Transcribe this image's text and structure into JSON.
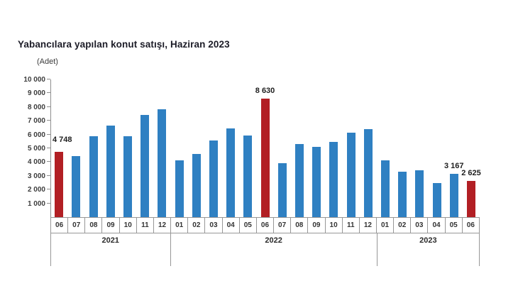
{
  "chart_data": {
    "type": "bar",
    "title": "Yabancılara yapılan konut satışı, Haziran 2023",
    "unit_label": "(Adet)",
    "xlabel": "",
    "ylabel": "",
    "ylim": [
      0,
      10000
    ],
    "grid": false,
    "legend": false,
    "colors": {
      "bar_default": "#2f80c2",
      "bar_highlight": "#b21f24",
      "axis": "#8f8f8f",
      "cell_border": "#979797",
      "title_text": "#1c1c27",
      "label_text": "#1d1d1d"
    },
    "yticks": [
      {
        "value": 10000,
        "label": "10 000"
      },
      {
        "value": 9000,
        "label": "9 000"
      },
      {
        "value": 8000,
        "label": "8 000"
      },
      {
        "value": 7000,
        "label": "7 000"
      },
      {
        "value": 6000,
        "label": "6 000"
      },
      {
        "value": 5000,
        "label": "5 000"
      },
      {
        "value": 4000,
        "label": "4 000"
      },
      {
        "value": 3000,
        "label": "3 000"
      },
      {
        "value": 2000,
        "label": "2 000"
      },
      {
        "value": 1000,
        "label": "1 000"
      }
    ],
    "bars": [
      {
        "year": "2021",
        "month": "06",
        "value": 4748,
        "highlight": true,
        "data_label": "4 748",
        "label_align": "left"
      },
      {
        "year": "2021",
        "month": "07",
        "value": 4450,
        "highlight": false
      },
      {
        "year": "2021",
        "month": "08",
        "value": 5900,
        "highlight": false
      },
      {
        "year": "2021",
        "month": "09",
        "value": 6650,
        "highlight": false
      },
      {
        "year": "2021",
        "month": "10",
        "value": 5900,
        "highlight": false
      },
      {
        "year": "2021",
        "month": "11",
        "value": 7400,
        "highlight": false
      },
      {
        "year": "2021",
        "month": "12",
        "value": 7850,
        "highlight": false
      },
      {
        "year": "2022",
        "month": "01",
        "value": 4150,
        "highlight": false
      },
      {
        "year": "2022",
        "month": "02",
        "value": 4600,
        "highlight": false
      },
      {
        "year": "2022",
        "month": "03",
        "value": 5550,
        "highlight": false
      },
      {
        "year": "2022",
        "month": "04",
        "value": 6450,
        "highlight": false
      },
      {
        "year": "2022",
        "month": "05",
        "value": 5950,
        "highlight": false
      },
      {
        "year": "2022",
        "month": "06",
        "value": 8630,
        "highlight": true,
        "data_label": "8 630"
      },
      {
        "year": "2022",
        "month": "07",
        "value": 3900,
        "highlight": false
      },
      {
        "year": "2022",
        "month": "08",
        "value": 5300,
        "highlight": false
      },
      {
        "year": "2022",
        "month": "09",
        "value": 5100,
        "highlight": false
      },
      {
        "year": "2022",
        "month": "10",
        "value": 5450,
        "highlight": false
      },
      {
        "year": "2022",
        "month": "11",
        "value": 6150,
        "highlight": false
      },
      {
        "year": "2022",
        "month": "12",
        "value": 6400,
        "highlight": false
      },
      {
        "year": "2023",
        "month": "01",
        "value": 4100,
        "highlight": false
      },
      {
        "year": "2023",
        "month": "02",
        "value": 3300,
        "highlight": false
      },
      {
        "year": "2023",
        "month": "03",
        "value": 3400,
        "highlight": false
      },
      {
        "year": "2023",
        "month": "04",
        "value": 2500,
        "highlight": false
      },
      {
        "year": "2023",
        "month": "05",
        "value": 3167,
        "highlight": false,
        "data_label": "3 167"
      },
      {
        "year": "2023",
        "month": "06",
        "value": 2625,
        "highlight": true,
        "data_label": "2 625"
      }
    ],
    "year_groups": [
      {
        "label": "2021",
        "span": 7
      },
      {
        "label": "2022",
        "span": 12
      },
      {
        "label": "2023",
        "span": 6
      }
    ]
  }
}
